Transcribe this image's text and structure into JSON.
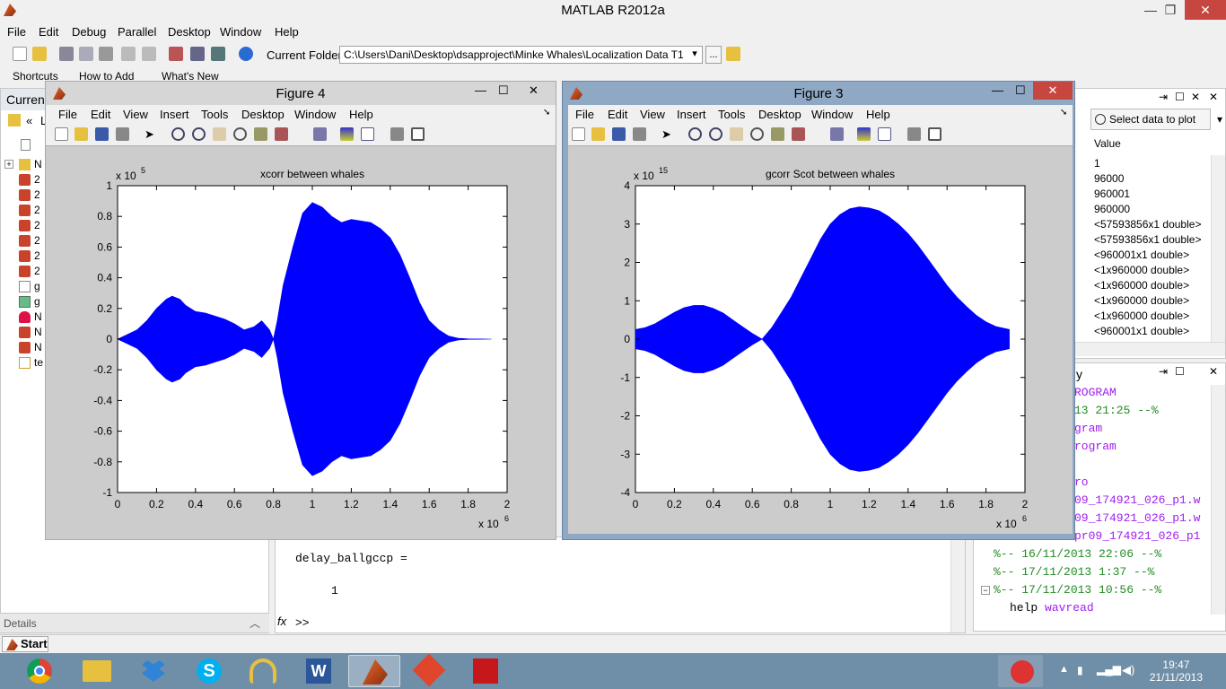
{
  "app": {
    "title": "MATLAB  R2012a",
    "menu": [
      "File",
      "Edit",
      "Debug",
      "Parallel",
      "Desktop",
      "Window",
      "Help"
    ],
    "current_folder_label": "Current Folder:",
    "current_folder_path": "C:\\Users\\Dani\\Desktop\\dsapproject\\Minke Whales\\Localization Data T1",
    "browse_label": "...",
    "shortcuts": [
      "Shortcuts",
      "How to Add",
      "What's New"
    ],
    "win_min": "—",
    "win_max": "❐",
    "win_close": "✕"
  },
  "left_panel": {
    "header": "Curren",
    "nav_label": "«",
    "nav_short": "L",
    "rows": [
      "N",
      "2",
      "2",
      "2",
      "2",
      "2",
      "2",
      "2",
      "g",
      "g",
      "N",
      "N",
      "N",
      "te"
    ],
    "details": "Details"
  },
  "command_window": {
    "line1": "delay_ballgccp =",
    "line2": "1",
    "prompt": ">>",
    "fx": "fx"
  },
  "workspace": {
    "select_data_label": "Select data to plot",
    "value_header": "Value",
    "values": [
      "1",
      "96000",
      "960001",
      "960000",
      "<57593856x1 double>",
      "<57593856x1 double>",
      "<960001x1 double>",
      "<1x960000 double>",
      "<1x960000 double>",
      "<1x960000 double>",
      "<1x960000 double>",
      "<960001x1 double>"
    ]
  },
  "history": {
    "title": "y",
    "lines": [
      {
        "text": "ROGRAM",
        "color": "#a020f0"
      },
      {
        "text": "13 21:25 --%",
        "color": "#228b22"
      },
      {
        "text": "gram",
        "color": "#a020f0"
      },
      {
        "text": "rogram",
        "color": "#a020f0"
      },
      {
        "text": "",
        "color": "#000"
      },
      {
        "text": "ro",
        "color": "#a020f0"
      },
      {
        "text": "09_174921_026_p1.w",
        "color": "#a020f0"
      },
      {
        "text": "09_174921_026_p1.w",
        "color": "#a020f0"
      },
      {
        "text": "pr09_174921_026_p1",
        "color": "#a020f0"
      },
      {
        "text": "%-- 16/11/2013 22:06 --%",
        "color": "#228b22"
      },
      {
        "text": "%-- 17/11/2013 1:37 --%",
        "color": "#228b22"
      },
      {
        "text": "%-- 17/11/2013 10:56 --%",
        "color": "#228b22"
      }
    ],
    "last_cmd": "help",
    "last_arg": "wavread"
  },
  "figure_menu": [
    "File",
    "Edit",
    "View",
    "Insert",
    "Tools",
    "Desktop",
    "Window",
    "Help"
  ],
  "figure4": {
    "title": "Figure 4",
    "chart_data": {
      "type": "area",
      "title": "xcorr between whales",
      "xlim": [
        0,
        2
      ],
      "ylim": [
        -1,
        1
      ],
      "x_exponent": "x 10",
      "x_exp_power": "6",
      "y_exponent": "x 10",
      "y_exp_power": "5",
      "xticks": [
        "0",
        "0.2",
        "0.4",
        "0.6",
        "0.8",
        "1",
        "1.2",
        "1.4",
        "1.6",
        "1.8",
        "2"
      ],
      "yticks": [
        "-1",
        "-0.8",
        "-0.6",
        "-0.4",
        "-0.2",
        "0",
        "0.2",
        "0.4",
        "0.6",
        "0.8",
        "1"
      ],
      "envelope_x": [
        0.0,
        0.05,
        0.1,
        0.15,
        0.2,
        0.25,
        0.28,
        0.32,
        0.35,
        0.4,
        0.45,
        0.5,
        0.55,
        0.6,
        0.65,
        0.7,
        0.74,
        0.78,
        0.8,
        0.82,
        0.85,
        0.9,
        0.95,
        1.0,
        1.05,
        1.1,
        1.15,
        1.2,
        1.25,
        1.3,
        1.35,
        1.4,
        1.45,
        1.5,
        1.55,
        1.6,
        1.65,
        1.7,
        1.75,
        1.8,
        1.85,
        1.92
      ],
      "envelope_y": [
        0.0,
        0.03,
        0.06,
        0.12,
        0.2,
        0.26,
        0.28,
        0.26,
        0.22,
        0.18,
        0.17,
        0.15,
        0.13,
        0.1,
        0.06,
        0.08,
        0.12,
        0.06,
        0.0,
        0.12,
        0.35,
        0.6,
        0.82,
        0.89,
        0.86,
        0.8,
        0.76,
        0.78,
        0.77,
        0.76,
        0.72,
        0.66,
        0.55,
        0.4,
        0.24,
        0.12,
        0.06,
        0.02,
        0.005,
        0.002,
        0.001,
        0.0
      ]
    }
  },
  "figure3": {
    "title": "Figure 3",
    "chart_data": {
      "type": "area",
      "title": "gcorr Scot between whales",
      "xlim": [
        0,
        2
      ],
      "ylim": [
        -4,
        4
      ],
      "x_exponent": "x 10",
      "x_exp_power": "6",
      "y_exponent": "x 10",
      "y_exp_power": "15",
      "xticks": [
        "0",
        "0.2",
        "0.4",
        "0.6",
        "0.8",
        "1",
        "1.2",
        "1.4",
        "1.6",
        "1.8",
        "2"
      ],
      "yticks": [
        "-4",
        "-3",
        "-2",
        "-1",
        "0",
        "1",
        "2",
        "3",
        "4"
      ],
      "envelope_x": [
        0.0,
        0.05,
        0.1,
        0.15,
        0.2,
        0.25,
        0.3,
        0.35,
        0.4,
        0.45,
        0.5,
        0.55,
        0.6,
        0.65,
        0.7,
        0.75,
        0.8,
        0.85,
        0.9,
        0.95,
        1.0,
        1.05,
        1.1,
        1.15,
        1.2,
        1.25,
        1.3,
        1.35,
        1.4,
        1.45,
        1.5,
        1.55,
        1.6,
        1.65,
        1.7,
        1.75,
        1.8,
        1.85,
        1.92
      ],
      "envelope_y": [
        0.25,
        0.3,
        0.4,
        0.55,
        0.7,
        0.82,
        0.88,
        0.88,
        0.8,
        0.68,
        0.5,
        0.32,
        0.15,
        0.0,
        0.3,
        0.7,
        1.1,
        1.6,
        2.1,
        2.6,
        3.0,
        3.25,
        3.4,
        3.45,
        3.42,
        3.35,
        3.2,
        3.0,
        2.75,
        2.45,
        2.1,
        1.75,
        1.4,
        1.1,
        0.85,
        0.62,
        0.45,
        0.33,
        0.25
      ]
    }
  },
  "startbar": {
    "start_label": "Start"
  },
  "clock": {
    "time": "19:47",
    "date": "21/11/2013"
  }
}
